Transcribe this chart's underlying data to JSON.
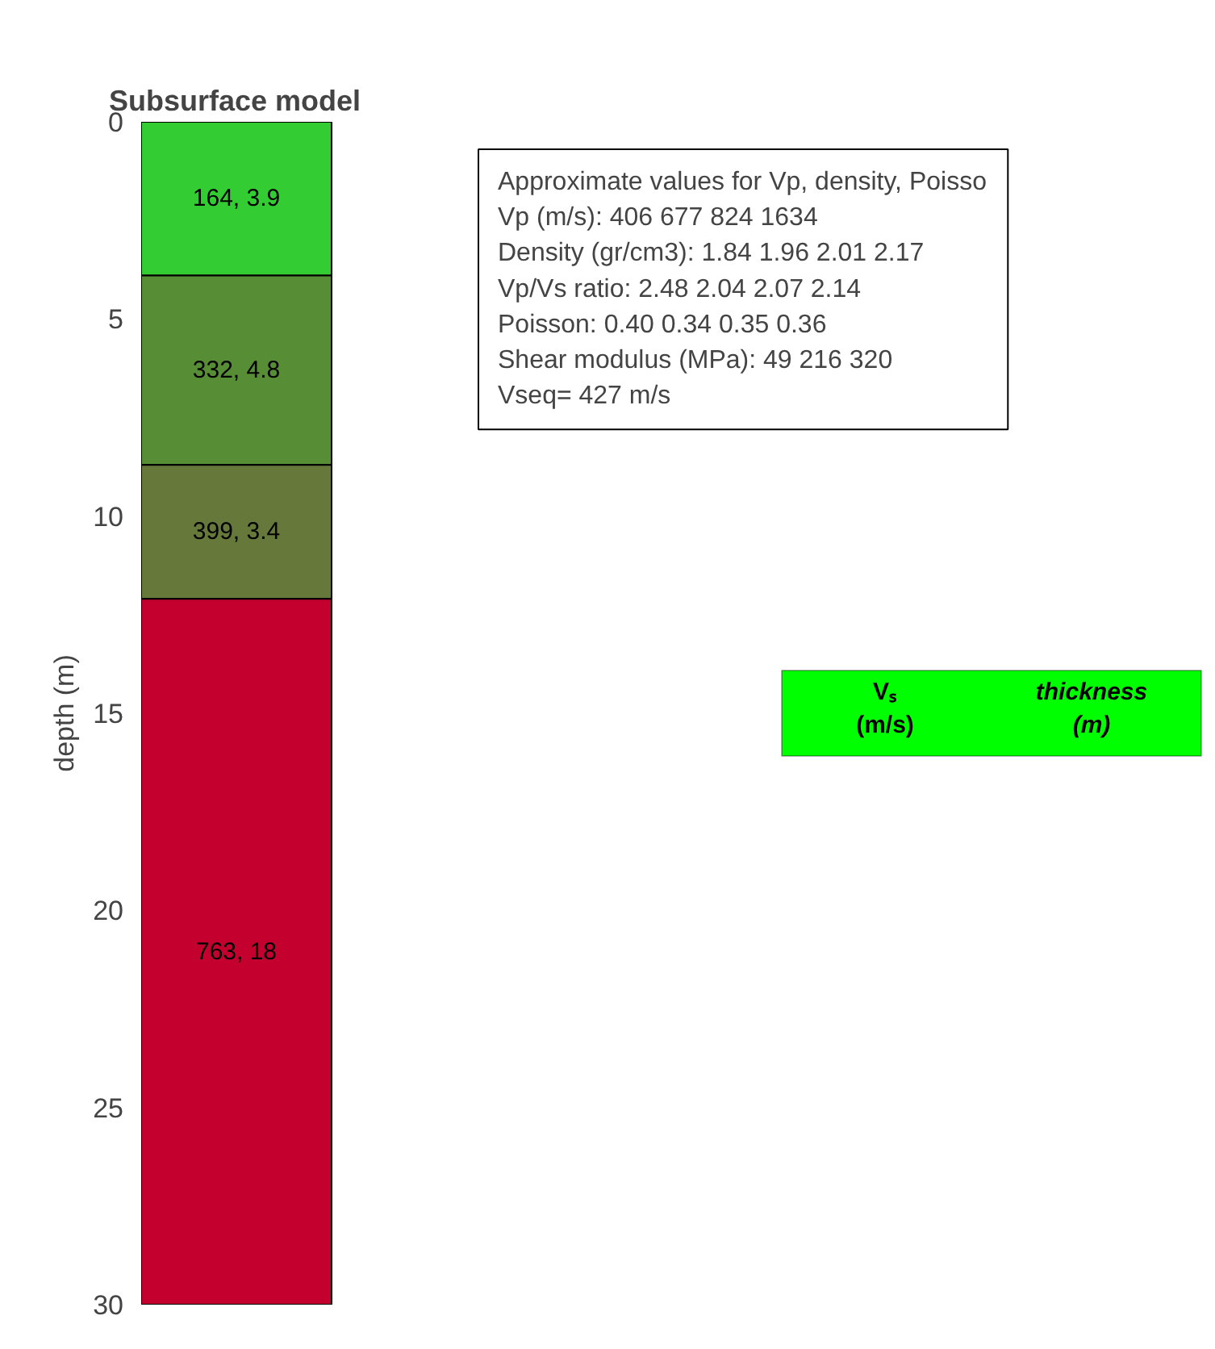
{
  "chart_data": {
    "type": "bar",
    "title": "Subsurface model",
    "ylabel": "depth (m)",
    "categories": [
      null
    ],
    "stacked": true,
    "series": [
      {
        "color": "#33cc33",
        "values": [
          3.9
        ],
        "value_labels": [
          "164, 3.9"
        ]
      },
      {
        "color": "#568d35",
        "values": [
          4.8
        ],
        "value_labels": [
          "332, 4.8"
        ]
      },
      {
        "color": "#66783a",
        "values": [
          3.4
        ],
        "value_labels": [
          "399, 3.4"
        ]
      },
      {
        "color": "#c4002f",
        "values": [
          17.9
        ],
        "value_labels": [
          "763, 18"
        ]
      }
    ],
    "ylim": [
      30,
      0
    ],
    "yticks": [
      0,
      5,
      10,
      15,
      20,
      25,
      30
    ],
    "grid": false,
    "tick_labels": "y",
    "annotations": [
      "Approximate values for Vp, density, Poisso",
      "Vp (m/s):  406   677   824  1634",
      "Density (gr/cm3): 1.84    1.96    2.01    2.17",
      "Vp/Vs ratio: 2.48     2.04     2.07     2.14",
      "Poisson: 0.40    0.34    0.35    0.36",
      "Shear modulus (MPa): 49       216       320",
      "Vseq=  427 m/s",
      "Vₛ\n(m/s)",
      "thickness\n(m)"
    ]
  }
}
